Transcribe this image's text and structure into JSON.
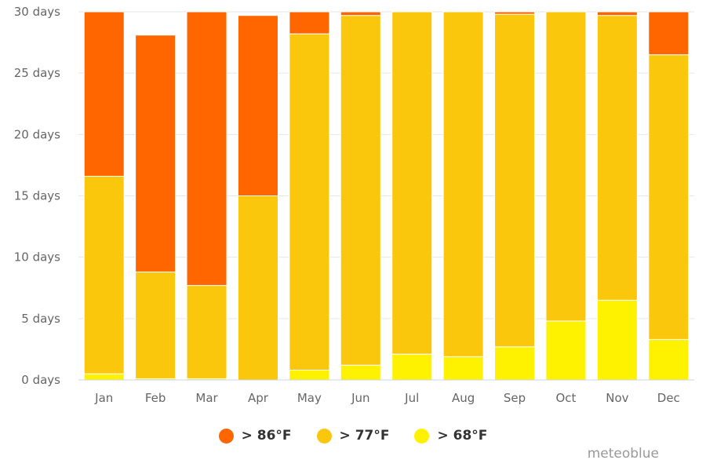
{
  "chart_data": {
    "type": "bar",
    "stacked": true,
    "categories": [
      "Jan",
      "Feb",
      "Mar",
      "Apr",
      "May",
      "Jun",
      "Jul",
      "Aug",
      "Sep",
      "Oct",
      "Nov",
      "Dec"
    ],
    "series": [
      {
        "name": "> 68°F",
        "color": "#fff200",
        "values": [
          0.5,
          0.1,
          0.1,
          0.0,
          0.8,
          1.2,
          2.1,
          1.9,
          2.7,
          4.8,
          6.5,
          3.3
        ]
      },
      {
        "name": "> 77°F",
        "color": "#fac70d",
        "values": [
          16.1,
          8.7,
          7.6,
          15.0,
          27.4,
          28.5,
          27.9,
          28.1,
          27.1,
          25.2,
          23.2,
          23.2
        ]
      },
      {
        "name": "> 86°F",
        "color": "#ff6600",
        "values": [
          13.4,
          19.3,
          22.3,
          14.7,
          1.8,
          0.3,
          0.0,
          0.0,
          0.2,
          0.0,
          0.3,
          3.5
        ]
      }
    ],
    "yticks": [
      "0 days",
      "5 days",
      "10 days",
      "15 days",
      "20 days",
      "25 days",
      "30 days"
    ],
    "ylim": [
      0,
      30
    ],
    "grid": true,
    "legend_placement": "bottom-center"
  },
  "legend": [
    {
      "label": "> 86°F",
      "color": "#ff6600"
    },
    {
      "label": "> 77°F",
      "color": "#fac70d"
    },
    {
      "label": "> 68°F",
      "color": "#fff200"
    }
  ],
  "credit": "meteoblue"
}
